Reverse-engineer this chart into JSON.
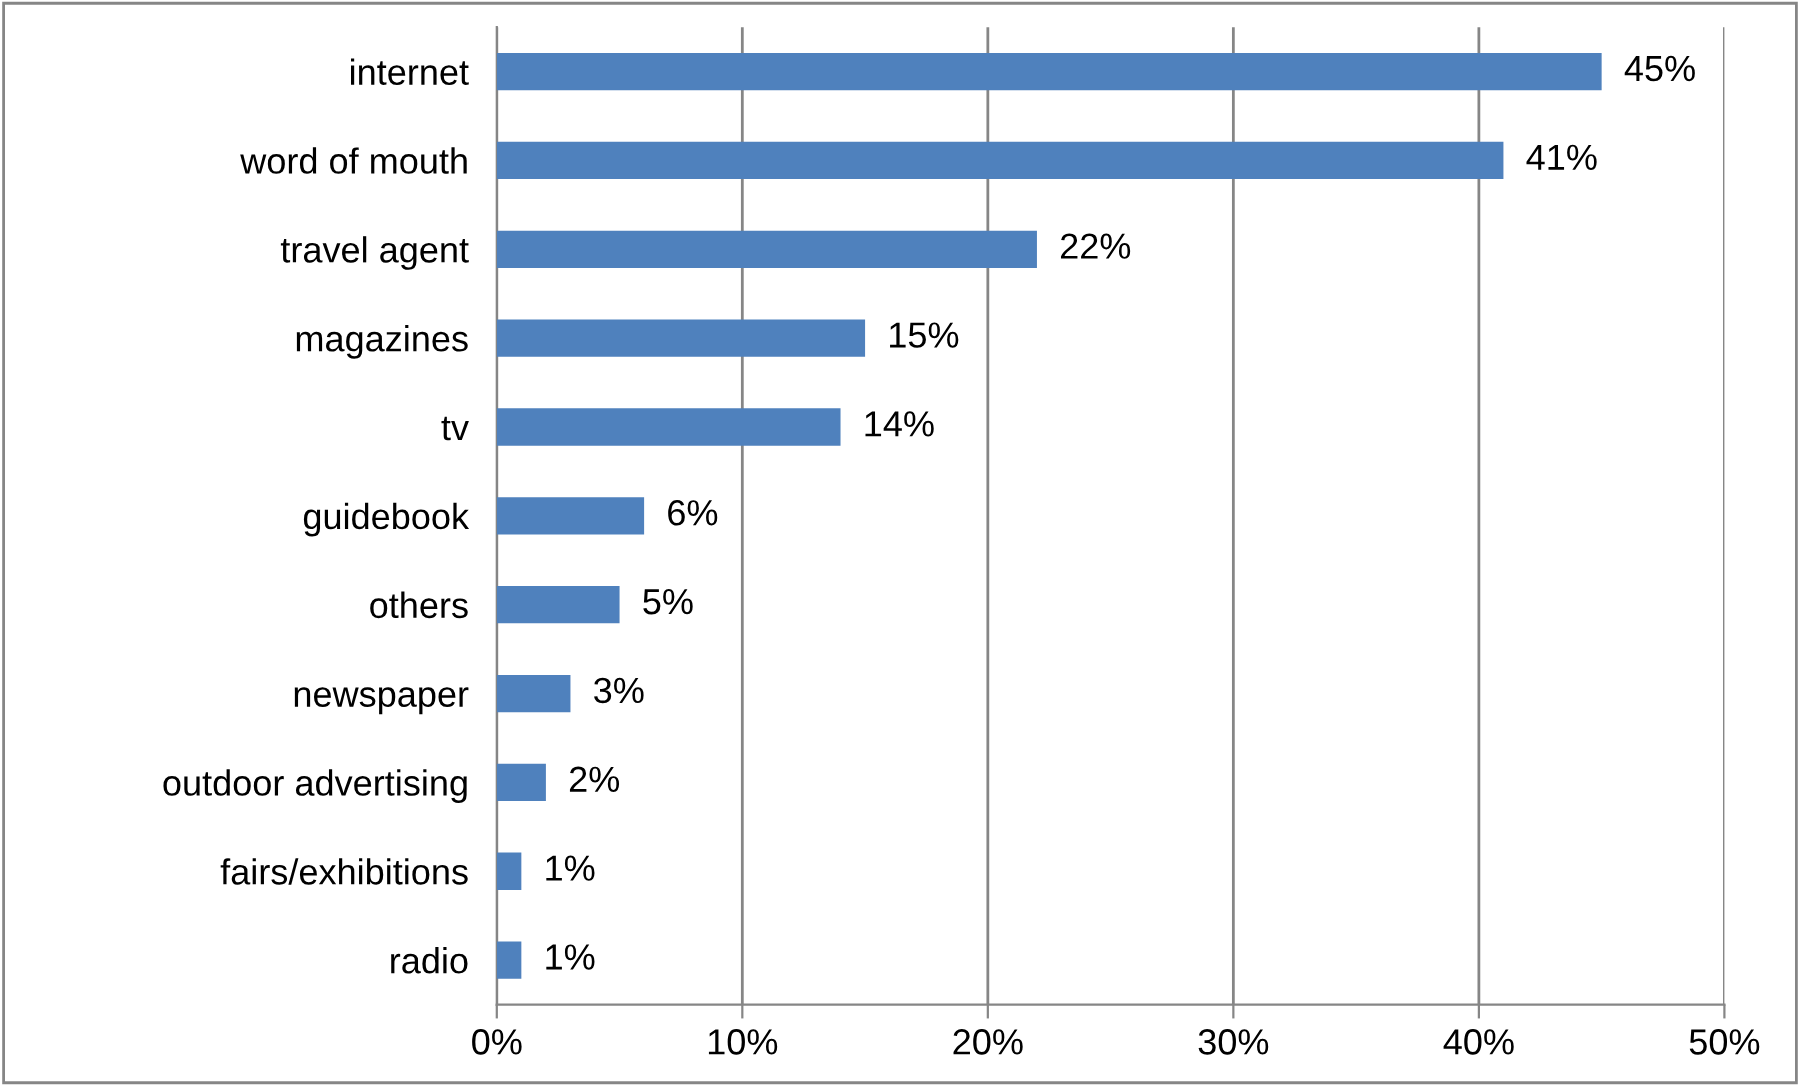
{
  "chart_data": {
    "type": "bar",
    "orientation": "horizontal",
    "categories": [
      "internet",
      "word of mouth",
      "travel agent",
      "magazines",
      "tv",
      "guidebook",
      "others",
      "newspaper",
      "outdoor advertising",
      "fairs/exhibitions",
      "radio"
    ],
    "values": [
      45,
      41,
      22,
      15,
      14,
      6,
      5,
      3,
      2,
      1,
      1
    ],
    "color": "#4f81bd",
    "value_labels": [
      "45%",
      "41%",
      "22%",
      "15%",
      "14%",
      "6%",
      "5%",
      "3%",
      "2%",
      "1%",
      "1%"
    ],
    "xlim": [
      0,
      50
    ],
    "xticks": [
      {
        "value": 0,
        "label": "0%"
      },
      {
        "value": 10,
        "label": "10%"
      },
      {
        "value": 20,
        "label": "20%"
      },
      {
        "value": 30,
        "label": "30%"
      },
      {
        "value": 40,
        "label": "40%"
      },
      {
        "value": 50,
        "label": "50%"
      }
    ],
    "grid": "x"
  }
}
